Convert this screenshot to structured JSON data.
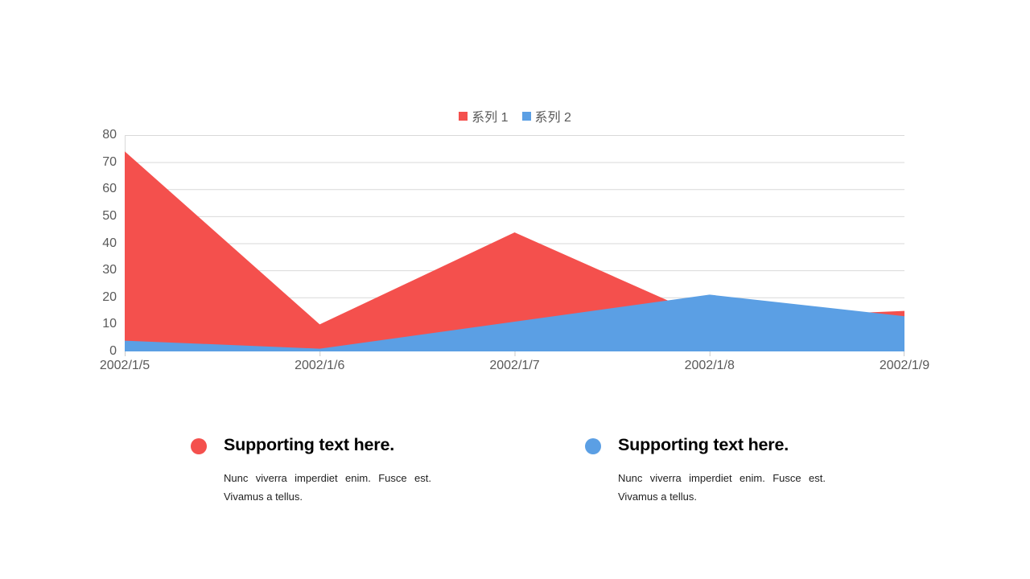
{
  "chart_data": {
    "type": "area",
    "title": "",
    "categories": [
      "2002/1/5",
      "2002/1/6",
      "2002/1/7",
      "2002/1/8",
      "2002/1/9"
    ],
    "series": [
      {
        "name": "系列 1",
        "color": "#F4504D",
        "values": [
          74,
          10,
          44,
          12,
          15
        ]
      },
      {
        "name": "系列 2",
        "color": "#5B9FE4",
        "values": [
          4,
          1,
          11,
          21,
          13
        ]
      }
    ],
    "xlabel": "",
    "ylabel": "",
    "ylim": [
      0,
      80
    ],
    "y_ticks": [
      0,
      10,
      20,
      30,
      40,
      50,
      60,
      70,
      80
    ],
    "grid": true,
    "legend_position": "top",
    "grid_color": "#D9D9D9",
    "axis_color": "#D9D9D9",
    "tick_color": "#C9C9C9",
    "axis_label_color": "#595959"
  },
  "legend": {
    "swatch_icons": [
      "red-square-icon",
      "blue-square-icon"
    ]
  },
  "supporting_blocks": [
    {
      "bullet_color": "#F4504D",
      "title": "Supporting text here.",
      "body": "Nunc viverra imperdiet enim. Fusce est. Vivamus a tellus."
    },
    {
      "bullet_color": "#5B9FE4",
      "title": "Supporting text here.",
      "body": "Nunc viverra imperdiet enim. Fusce est. Vivamus a tellus."
    }
  ]
}
